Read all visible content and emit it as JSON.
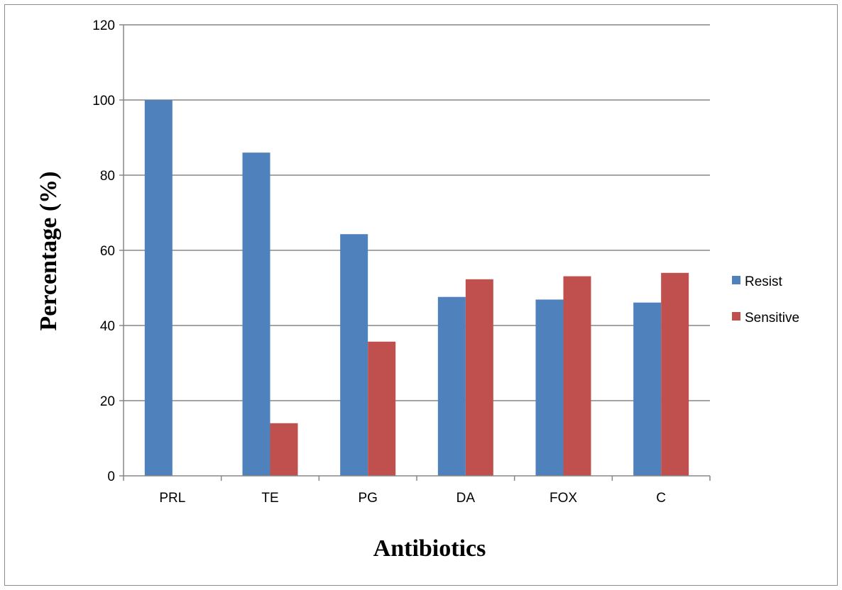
{
  "chart_data": {
    "type": "bar",
    "title": "",
    "xlabel": "Antibiotics",
    "ylabel": "Percentage (%)",
    "categories": [
      "PRL",
      "TE",
      "PG",
      "DA",
      "FOX",
      "C"
    ],
    "series": [
      {
        "name": "Resist",
        "color": "#4f81bd",
        "values": [
          100,
          86,
          64.3,
          47.6,
          46.9,
          46.1
        ]
      },
      {
        "name": "Sensitive",
        "color": "#c0504d",
        "values": [
          0,
          14,
          35.7,
          52.3,
          53.1,
          54
        ]
      }
    ],
    "ylim": [
      0,
      120
    ],
    "yticks": [
      0,
      20,
      40,
      60,
      80,
      100,
      120
    ],
    "grid": true,
    "legend_position": "right"
  }
}
